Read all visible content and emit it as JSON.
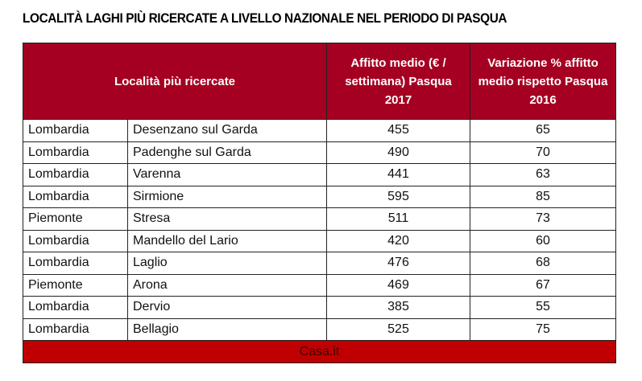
{
  "title": "LOCALITÀ LAGHI PIÙ RICERCATE A LIVELLO NAZIONALE NEL PERIODO DI PASQUA",
  "columns": [
    "Località più ricercate",
    "Affitto medio (€ / settimana) Pasqua 2017",
    "Variazione % affitto medio rispetto Pasqua 2016"
  ],
  "rows": [
    {
      "region": "Lombardia",
      "town": "Desenzano sul Garda",
      "rent": "455",
      "change": "65"
    },
    {
      "region": "Lombardia",
      "town": "Padenghe sul Garda",
      "rent": "490",
      "change": "70"
    },
    {
      "region": "Lombardia",
      "town": "Varenna",
      "rent": "441",
      "change": "63"
    },
    {
      "region": "Lombardia",
      "town": "Sirmione",
      "rent": "595",
      "change": "85"
    },
    {
      "region": "Piemonte",
      "town": "Stresa",
      "rent": "511",
      "change": "73"
    },
    {
      "region": "Lombardia",
      "town": "Mandello del Lario",
      "rent": "420",
      "change": "60"
    },
    {
      "region": "Lombardia",
      "town": "Laglio",
      "rent": "476",
      "change": "68"
    },
    {
      "region": "Piemonte",
      "town": "Arona",
      "rent": "469",
      "change": "67"
    },
    {
      "region": "Lombardia",
      "town": "Dervio",
      "rent": "385",
      "change": "55"
    },
    {
      "region": "Lombardia",
      "town": "Bellagio",
      "rent": "525",
      "change": "75"
    }
  ],
  "footer": "Casa.it",
  "colors": {
    "header": "#a50021",
    "footer": "#c00000"
  }
}
